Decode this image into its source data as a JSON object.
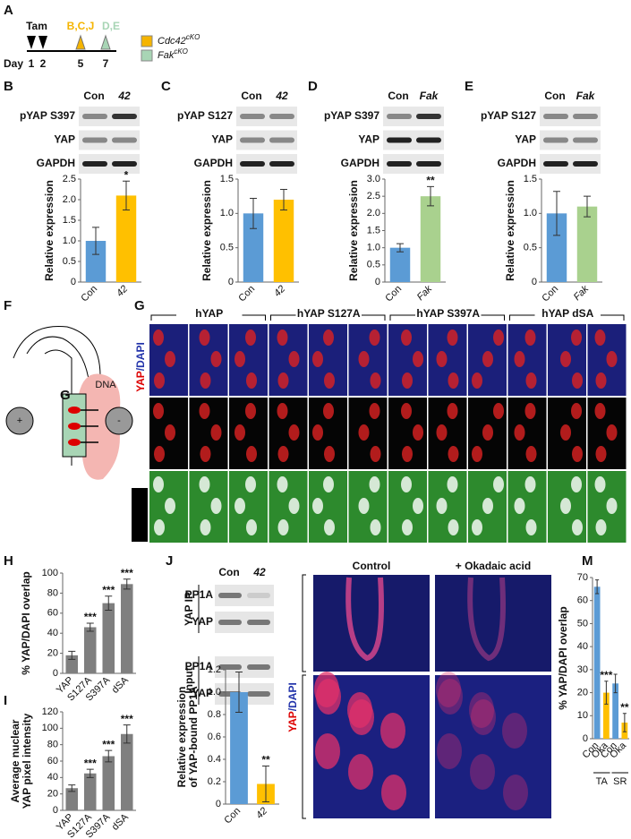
{
  "panel_a": {
    "label": "A",
    "tam": "Tam",
    "day": "Day",
    "days": [
      "1",
      "2",
      "5",
      "7"
    ],
    "markers": [
      "B,C,J",
      "D,E"
    ],
    "legend": [
      {
        "name": "Cdc42",
        "sup": "cKO",
        "color": "#f5b400"
      },
      {
        "name": "Fak",
        "sup": "cKO",
        "color": "#a8d5b5"
      }
    ]
  },
  "blots": [
    {
      "label": "B",
      "columns": [
        "Con",
        "42"
      ],
      "rows": [
        "pYAP S397",
        "YAP",
        "GAPDH"
      ]
    },
    {
      "label": "C",
      "columns": [
        "Con",
        "42"
      ],
      "rows": [
        "pYAP S127",
        "YAP",
        "GAPDH"
      ]
    },
    {
      "label": "D",
      "columns": [
        "Con",
        "Fak"
      ],
      "rows": [
        "pYAP S397",
        "YAP",
        "GAPDH"
      ]
    },
    {
      "label": "E",
      "columns": [
        "Con",
        "Fak"
      ],
      "rows": [
        "pYAP S127",
        "YAP",
        "GAPDH"
      ]
    }
  ],
  "panel_f": {
    "label": "F",
    "dna": "DNA",
    "target": "G",
    "plus": "+",
    "minus": "-"
  },
  "panel_g": {
    "label": "G",
    "groups": [
      "hYAP",
      "hYAP S127A",
      "hYAP S397A",
      "hYAP dSA"
    ],
    "stain": [
      "YAP",
      "/DAPI"
    ]
  },
  "panel_j": {
    "label": "J",
    "columns": [
      "Con",
      "42"
    ],
    "sections": [
      {
        "name": "YAP IP",
        "rows": [
          "PP1A",
          "YAP"
        ]
      },
      {
        "name": "Input",
        "rows": [
          "PP1A",
          "YAP"
        ]
      }
    ]
  },
  "panel_kl": {
    "conditions": [
      "Control",
      "+ Okadaic acid"
    ],
    "stain": [
      "YAP",
      "/DAPI"
    ]
  },
  "chart_data": [
    {
      "type": "bar",
      "ylabel": "Relative expression",
      "categories": [
        "Con",
        "42"
      ],
      "values": [
        1.0,
        2.1
      ],
      "errors": [
        0.33,
        0.35
      ],
      "colors": [
        "#5b9bd5",
        "#ffc000"
      ],
      "significance": [
        null,
        "*"
      ],
      "ylim": [
        0,
        2.5
      ],
      "yticks": [
        0,
        0.5,
        {
          "value": 1,
          "label": "1.0"
        },
        1.5,
        {
          "value": 2,
          "label": "2.0"
        },
        2.5
      ]
    },
    {
      "type": "bar",
      "ylabel": "Relative expression",
      "categories": [
        "Con",
        "42"
      ],
      "values": [
        1.0,
        1.2
      ],
      "errors": [
        0.22,
        0.15
      ],
      "colors": [
        "#5b9bd5",
        "#ffc000"
      ],
      "ylim": [
        0,
        1.5
      ],
      "yticks": [
        0,
        0.5,
        {
          "value": 1,
          "label": "1.0"
        },
        1.5
      ]
    },
    {
      "type": "bar",
      "ylabel": "Relative expression",
      "categories": [
        "Con",
        "Fak"
      ],
      "values": [
        1.0,
        2.5
      ],
      "errors": [
        0.12,
        0.28
      ],
      "colors": [
        "#5b9bd5",
        "#a9d18e"
      ],
      "significance": [
        null,
        "**"
      ],
      "ylim": [
        0,
        3
      ],
      "yticks": [
        0,
        0.5,
        {
          "value": 1,
          "label": "1.0"
        },
        1.5,
        {
          "value": 2,
          "label": "2.0"
        },
        2.5,
        {
          "value": 3,
          "label": "3.0"
        }
      ]
    },
    {
      "type": "bar",
      "ylabel": "Relative expression",
      "categories": [
        "Con",
        "Fak"
      ],
      "values": [
        1.0,
        1.1
      ],
      "errors": [
        0.32,
        0.15
      ],
      "colors": [
        "#5b9bd5",
        "#a9d18e"
      ],
      "ylim": [
        0,
        1.5
      ],
      "yticks": [
        0,
        0.5,
        {
          "value": 1,
          "label": "1.0"
        },
        1.5
      ]
    },
    {
      "type": "bar",
      "label": "H",
      "ylabel": "% YAP/DAPI overlap",
      "categories": [
        "YAP",
        "S127A",
        "S397A",
        "dSA"
      ],
      "values": [
        18,
        46,
        70,
        89
      ],
      "errors": [
        4,
        4,
        7,
        5
      ],
      "colors": [
        "#7f7f7f",
        "#7f7f7f",
        "#7f7f7f",
        "#7f7f7f"
      ],
      "significance": [
        null,
        "***",
        "***",
        "***"
      ],
      "ylim": [
        0,
        100
      ],
      "yticks": [
        0,
        20,
        40,
        60,
        80,
        100
      ]
    },
    {
      "type": "bar",
      "label": "I",
      "ylabel": [
        "Average nuclear",
        "YAP pixel intensity"
      ],
      "categories": [
        "YAP",
        "S127A",
        "S397A",
        "dSA"
      ],
      "values": [
        27,
        45,
        66,
        93
      ],
      "errors": [
        4,
        5,
        7,
        11
      ],
      "colors": [
        "#7f7f7f",
        "#7f7f7f",
        "#7f7f7f",
        "#7f7f7f"
      ],
      "significance": [
        null,
        "***",
        "***",
        "***"
      ],
      "ylim": [
        0,
        120
      ],
      "yticks": [
        0,
        20,
        40,
        60,
        80,
        100,
        120
      ]
    },
    {
      "type": "bar",
      "ylabel": [
        "Relative expression",
        "of YAP-bound PP1A"
      ],
      "categories": [
        "Con",
        "42"
      ],
      "values": [
        1.0,
        0.18
      ],
      "errors": [
        0.18,
        0.16
      ],
      "colors": [
        "#5b9bd5",
        "#ffc000"
      ],
      "significance": [
        null,
        "**"
      ],
      "ylim": [
        0,
        1.2
      ],
      "yticks": [
        0,
        0.2,
        0.4,
        0.6,
        0.8,
        {
          "value": 1,
          "label": "1.0"
        },
        1.2
      ]
    },
    {
      "type": "bar",
      "label": "M",
      "ylabel": "% YAP/DAPI overlap",
      "categories": [
        "Con",
        "Oka",
        "Con",
        "Oka"
      ],
      "values": [
        66,
        20,
        24,
        7
      ],
      "errors": [
        3,
        5,
        4,
        4
      ],
      "colors": [
        "#5b9bd5",
        "#ffc000",
        "#5b9bd5",
        "#ffc000"
      ],
      "significance": [
        null,
        "***",
        null,
        "**"
      ],
      "groups": [
        "TA",
        "SR"
      ],
      "ylim": [
        0,
        70
      ],
      "yticks": [
        0,
        10,
        20,
        30,
        40,
        50,
        60,
        70
      ]
    }
  ]
}
